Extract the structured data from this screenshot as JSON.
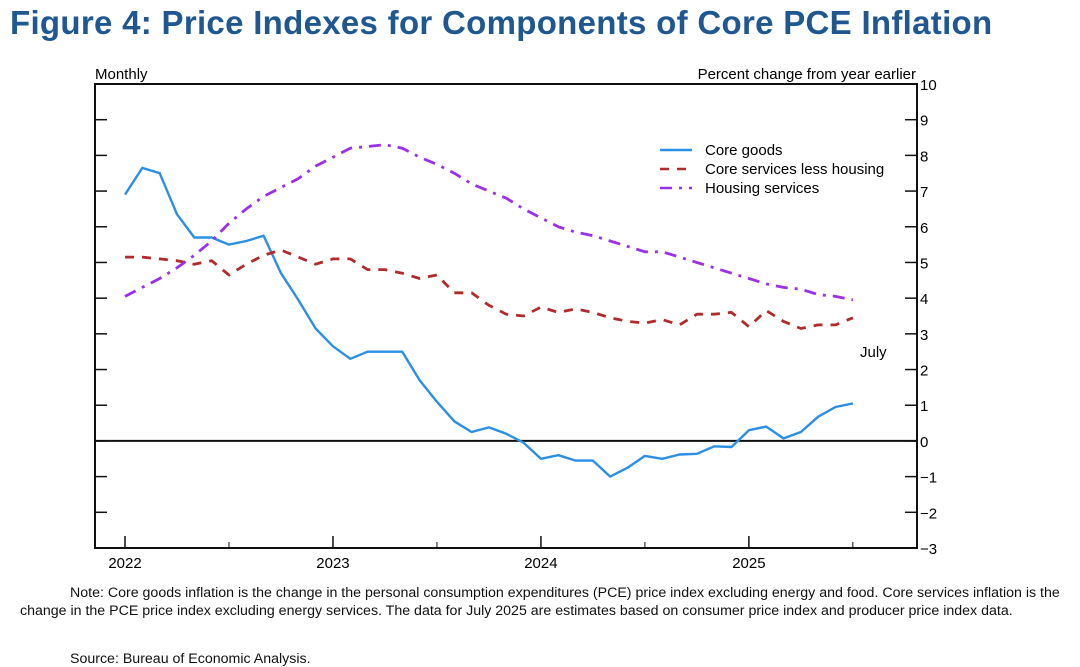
{
  "title": "Figure 4: Price Indexes for Components of Core PCE Inflation",
  "chart_data": {
    "type": "line",
    "title": "Figure 4: Price Indexes for Components of Core PCE Inflation",
    "frequency_label": "Monthly",
    "ylabel": "Percent change from year earlier",
    "ylim": [
      -3,
      10
    ],
    "yticks": [
      -3,
      -2,
      -1,
      0,
      1,
      2,
      3,
      4,
      5,
      6,
      7,
      8,
      9,
      10
    ],
    "xticks": [
      "2022",
      "2023",
      "2024",
      "2025"
    ],
    "x_start": "2022-01",
    "x_end": "2025-07",
    "annotation": "July",
    "legend_position": "top-right",
    "series": [
      {
        "name": "Core goods",
        "color": "#2b8fe6",
        "style": "solid",
        "values": [
          6.9,
          7.65,
          7.5,
          6.35,
          5.7,
          5.7,
          5.5,
          5.6,
          5.75,
          4.7,
          3.95,
          3.15,
          2.65,
          2.3,
          2.5,
          2.5,
          2.5,
          1.7,
          1.1,
          0.55,
          0.25,
          0.38,
          0.2,
          -0.05,
          -0.5,
          -0.4,
          -0.55,
          -0.55,
          -1.0,
          -0.75,
          -0.42,
          -0.5,
          -0.38,
          -0.36,
          -0.15,
          -0.17,
          0.3,
          0.4,
          0.07,
          0.25,
          0.68,
          0.95,
          1.05
        ]
      },
      {
        "name": "Core services less housing",
        "color": "#b22a2a",
        "style": "dashed",
        "values": [
          5.15,
          5.15,
          5.1,
          5.05,
          4.95,
          5.05,
          4.65,
          4.95,
          5.2,
          5.35,
          5.15,
          4.95,
          5.1,
          5.1,
          4.8,
          4.8,
          4.7,
          4.55,
          4.65,
          4.15,
          4.15,
          3.8,
          3.55,
          3.5,
          3.75,
          3.6,
          3.7,
          3.6,
          3.45,
          3.35,
          3.3,
          3.4,
          3.25,
          3.55,
          3.55,
          3.6,
          3.2,
          3.65,
          3.35,
          3.15,
          3.25,
          3.25,
          3.45
        ]
      },
      {
        "name": "Housing services",
        "color": "#9b30e8",
        "style": "dashdot",
        "values": [
          4.05,
          4.3,
          4.55,
          4.85,
          5.2,
          5.6,
          6.1,
          6.5,
          6.85,
          7.1,
          7.35,
          7.7,
          7.95,
          8.2,
          8.25,
          8.3,
          8.2,
          7.95,
          7.75,
          7.5,
          7.2,
          7.0,
          6.8,
          6.5,
          6.25,
          6.0,
          5.85,
          5.75,
          5.6,
          5.45,
          5.3,
          5.3,
          5.15,
          5.0,
          4.85,
          4.7,
          4.55,
          4.4,
          4.3,
          4.25,
          4.1,
          4.05,
          3.95
        ]
      }
    ]
  },
  "note": "Note: Core goods inflation is the change in the personal consumption expenditures (PCE) price index excluding energy and food. Core services inflation is the change in the PCE price index excluding energy services. The data for July 2025 are estimates based on consumer price index and producer price index data.",
  "source": "Source: Bureau of Economic Analysis."
}
